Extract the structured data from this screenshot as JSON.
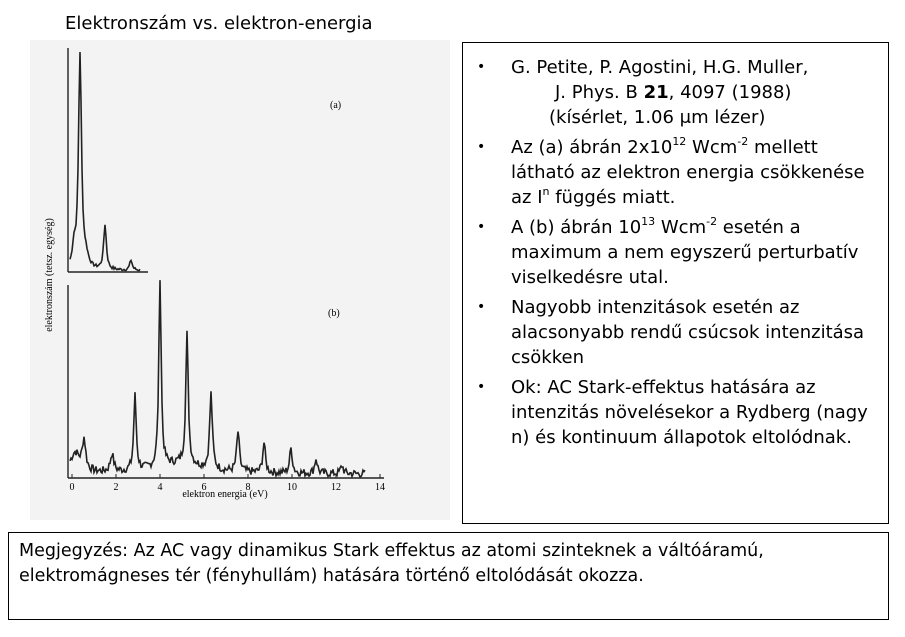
{
  "header": {
    "title": "Elektronszám vs. elektron-energia"
  },
  "figure": {
    "ylabel": "elektronszám (tetsz. egység)",
    "xlabel": "elektron energia (eV)",
    "panel_a": "(a)",
    "panel_b": "(b)",
    "xtick_labels": [
      "0",
      "2",
      "4",
      "6",
      "8",
      "10",
      "12",
      "14"
    ]
  },
  "bullets": [
    [
      "G. Petite, P. Agostini, H.G. Muller,",
      "J. Phys. B ",
      "21",
      ", 4097 (1988)",
      "(kísérlet, 1.06 μm lézer)"
    ],
    [
      "Az (a) ábrán 2x10",
      "12",
      " Wcm",
      "-2",
      " mellett látható az elektron energia csökkenése az I",
      "n",
      " függés miatt."
    ],
    [
      "A (b) ábrán 10",
      "13",
      " Wcm",
      "-2",
      " esetén a maximum a nem egyszerű perturbatív viselkedésre utal."
    ],
    [
      "Nagyobb intenzitások esetén az alacsonyabb rendű csúcsok intenzitása csökken"
    ],
    [
      "Ok: AC Stark-effektus hatására az intenzitás növelésekor a Rydberg (nagy n)  és kontinuum állapotok eltolódnak."
    ]
  ],
  "note": "Megjegyzés: Az AC vagy dinamikus Stark effektus az atomi szinteknek a váltóáramú, elektromágneses tér (fényhullám) hatására történő eltolódását okozza."
}
